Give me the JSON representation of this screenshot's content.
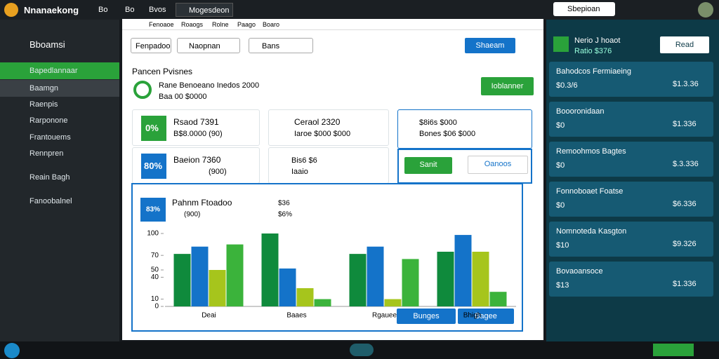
{
  "topbar": {
    "brand": "Nnanaekong",
    "nav": [
      "Bo",
      "Bo",
      "Bvos",
      "Mogesdeon"
    ],
    "search": "Sbepioan"
  },
  "sidebar": {
    "title": "Bboamsi",
    "items": [
      "Bapedlannaar",
      "Baamgn",
      "Raenpis",
      "Rarponone",
      "Frantouems",
      "Rennpren",
      "Reain Bagh",
      "Fanoobalnel"
    ]
  },
  "main": {
    "tabs": [
      "Fenoaoe",
      "Roaogs",
      "Rolne",
      "Paago",
      "Boaro"
    ],
    "filters": [
      "Fenpadoo",
      "Naopnan",
      "Bans"
    ],
    "action": "Shaeam",
    "heading": "Pancen Pvisnes",
    "summary": "Rane Benoeano  Inedos 2000",
    "summary2": "Baa  00  $0000",
    "button": "Ioblanner",
    "cards": [
      {
        "badge": "0%",
        "title": "Rsaod 7391",
        "sub": "B$8.0000 (90)"
      },
      {
        "title": "Ceraol 2320",
        "sub": "Iaroe $000 $000"
      },
      {
        "title": "$8i6s $000",
        "sub": "Bones $06 $000"
      },
      {
        "badge": "80%",
        "title": "Baeion 7360",
        "sub": "(900)"
      },
      {
        "title": "Bis6 $6",
        "sub": "Iaaio"
      }
    ],
    "buttons": [
      "Sanit",
      "Oanoos"
    ],
    "chart_buttons": [
      "Bunges",
      "Bagee"
    ]
  },
  "chart_data": {
    "type": "bar",
    "title": "Pahnm Ftoadoo",
    "badge": "83%",
    "subtitle": "(900)",
    "annotations": [
      "$36",
      "$6%"
    ],
    "categories": [
      "Deai",
      "Baaes",
      "Rgauee",
      "Bhigh"
    ],
    "series": [
      {
        "color": "#0f8a3c",
        "values": [
          72,
          100,
          72,
          75
        ]
      },
      {
        "color": "#1473c9",
        "values": [
          82,
          52,
          82,
          98
        ]
      },
      {
        "color": "#a6c51c",
        "values": [
          50,
          25,
          10,
          75
        ]
      },
      {
        "color": "#3bb33b",
        "values": [
          85,
          10,
          65,
          20
        ]
      }
    ],
    "ylim": [
      0,
      100
    ],
    "yticks": [
      0,
      10,
      40,
      50,
      70,
      100
    ]
  },
  "right": {
    "title": "Nerio J hoaot",
    "subtitle": "Ratio $376",
    "button": "Read",
    "items": [
      {
        "name": "Bahodcos Fermiaeing",
        "left": "$0.3/6",
        "value": "$1.3.36"
      },
      {
        "name": "Boooronidaan",
        "left": "$0",
        "value": "$1.336"
      },
      {
        "name": "Remoohmos Bagtes",
        "left": "$0",
        "value": "$.3.336"
      },
      {
        "name": "Fonnoboaet Foatse",
        "left": "$0",
        "value": "$6.336"
      },
      {
        "name": "Nomnoteda Kasgton",
        "left": "$10",
        "value": "$9.326"
      },
      {
        "name": "Bovaoansoce",
        "left": "$13",
        "value": "$1.336"
      }
    ]
  }
}
